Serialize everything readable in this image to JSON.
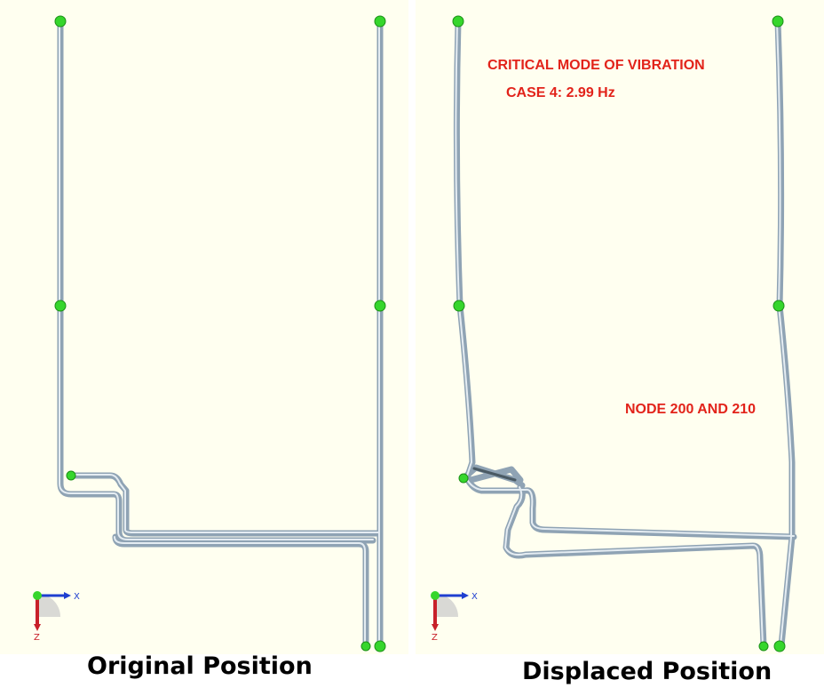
{
  "captions": {
    "original": "Original Position",
    "displaced": "Displaced Position"
  },
  "annotations": {
    "title": "CRITICAL MODE OF VIBRATION",
    "mode_case": "CASE 4: 2.99 Hz",
    "nodes": "NODE 200 AND 210"
  },
  "axis_triad": {
    "x_label": "X",
    "z_label": "Z"
  },
  "colors": {
    "background": "#fffff0",
    "pipe": "#9fb3c3",
    "pipe_highlight": "#e6eef4",
    "node": "#36d62c",
    "annotation_text": "#e2231a",
    "axis_x": "#1f3fd0",
    "axis_z": "#c8202a"
  }
}
